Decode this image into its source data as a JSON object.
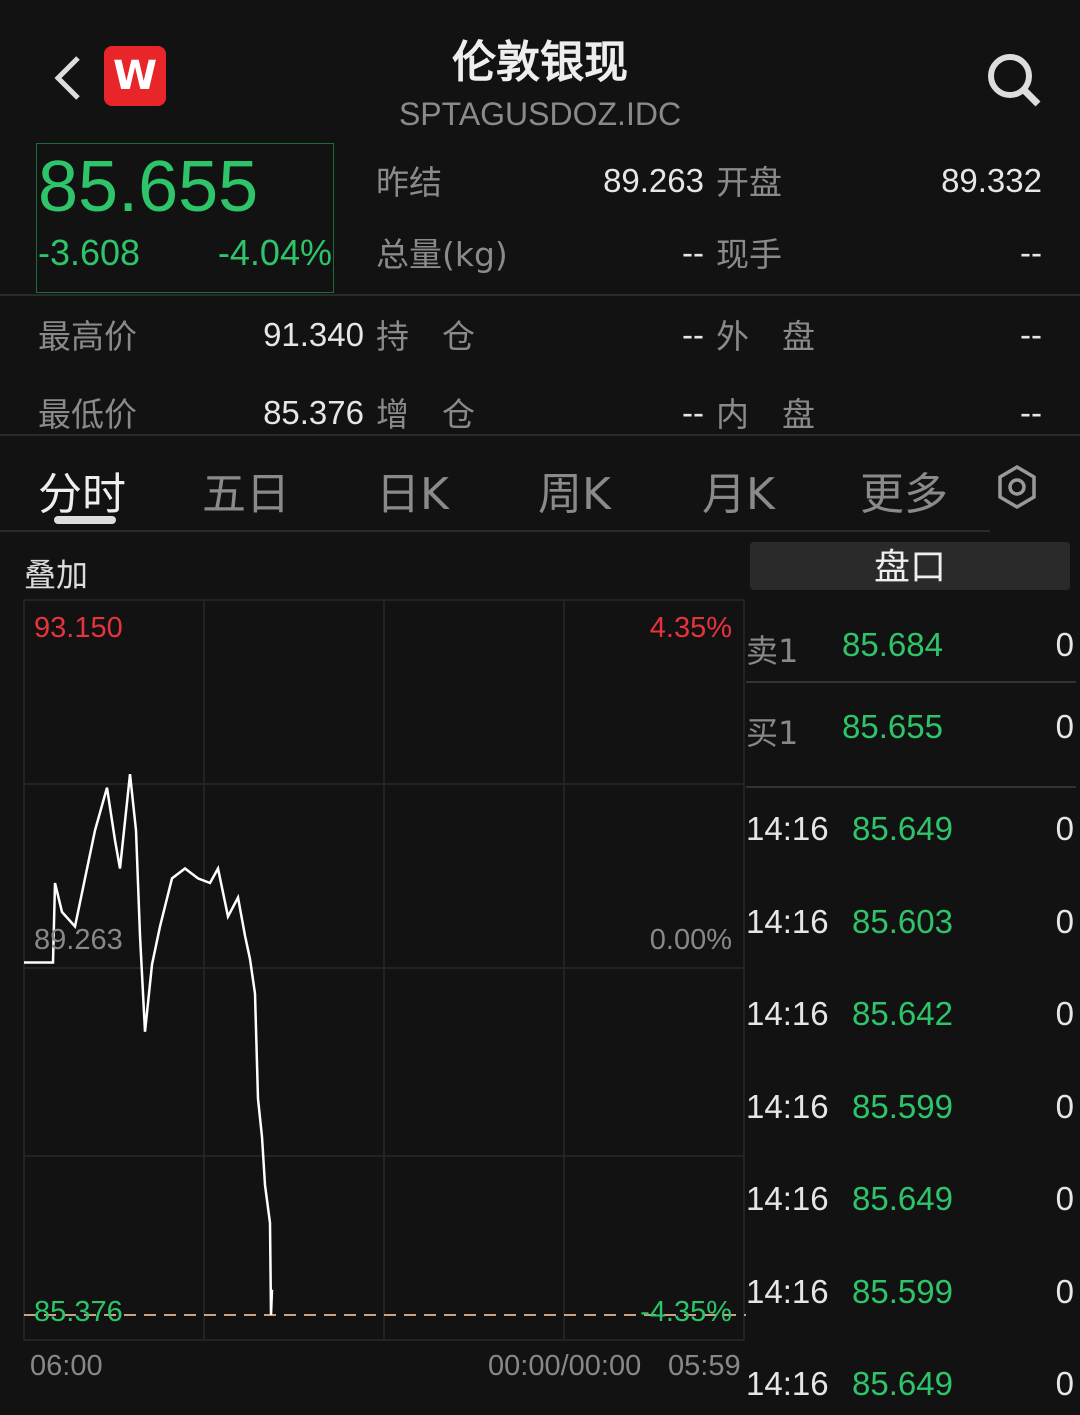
{
  "header": {
    "title": "伦敦银现",
    "code": "SPTAGUSDOZ.IDC",
    "logo": "W",
    "back_icon": "chevron-left-icon",
    "search_icon": "search-icon"
  },
  "quote": {
    "price": "85.655",
    "change": "-3.608",
    "change_pct": "-4.04%"
  },
  "stats": [
    {
      "label": "昨结",
      "value": "89.263"
    },
    {
      "label": "开盘",
      "value": "89.332"
    },
    {
      "label": "总量(kg)",
      "value": "--"
    },
    {
      "label": "现手",
      "value": "--"
    },
    {
      "label": "最高价",
      "value": "91.340"
    },
    {
      "label": "持　仓",
      "value": "--"
    },
    {
      "label": "外　盘",
      "value": "--"
    },
    {
      "label": "最低价",
      "value": "85.376"
    },
    {
      "label": "增　仓",
      "value": "--"
    },
    {
      "label": "内　盘",
      "value": "--"
    }
  ],
  "tabs": [
    {
      "label": "分时",
      "active": true
    },
    {
      "label": "五日"
    },
    {
      "label": "日K"
    },
    {
      "label": "周K"
    },
    {
      "label": "月K"
    },
    {
      "label": "更多"
    }
  ],
  "overlay_label": "叠加",
  "colors": {
    "up": "#e8323c",
    "down": "#2ec46a",
    "line": "#ffffff",
    "bg": "#121212"
  },
  "chart_data": {
    "type": "line",
    "ylim": [
      85.376,
      93.15
    ],
    "y_labels": {
      "top": "93.150",
      "mid": "89.263",
      "bottom": "85.376"
    },
    "pct_labels": {
      "top": "4.35%",
      "mid": "0.00%",
      "bottom": "-4.35%"
    },
    "x_labels": {
      "start": "06:00",
      "cursor": "00:00/00:00",
      "end": "05:59"
    },
    "reference_price": 89.263,
    "points": [
      [
        "06:00",
        89.263
      ],
      [
        "06:58",
        89.263
      ],
      [
        "07:02",
        90.14
      ],
      [
        "07:16",
        89.82
      ],
      [
        "07:42",
        89.66
      ],
      [
        "08:02",
        90.19
      ],
      [
        "08:22",
        90.72
      ],
      [
        "08:46",
        91.19
      ],
      [
        "09:02",
        90.61
      ],
      [
        "09:12",
        90.3
      ],
      [
        "09:32",
        91.34
      ],
      [
        "09:44",
        90.72
      ],
      [
        "09:52",
        89.56
      ],
      [
        "10:02",
        88.5
      ],
      [
        "10:16",
        89.24
      ],
      [
        "10:32",
        89.66
      ],
      [
        "10:56",
        90.19
      ],
      [
        "11:22",
        90.3
      ],
      [
        "11:48",
        90.19
      ],
      [
        "12:12",
        90.14
      ],
      [
        "12:28",
        90.3
      ],
      [
        "12:48",
        89.77
      ],
      [
        "13:08",
        89.98
      ],
      [
        "13:22",
        89.56
      ],
      [
        "13:32",
        89.3
      ],
      [
        "13:42",
        88.92
      ],
      [
        "13:48",
        87.76
      ],
      [
        "13:56",
        87.34
      ],
      [
        "14:02",
        86.81
      ],
      [
        "14:12",
        86.39
      ],
      [
        "14:14",
        85.376
      ],
      [
        "14:16",
        85.655
      ]
    ]
  },
  "orderbook": {
    "title": "盘口",
    "quotes": [
      {
        "label": "卖1",
        "price": "85.684",
        "vol": "0"
      },
      {
        "label": "买1",
        "price": "85.655",
        "vol": "0"
      }
    ],
    "trades": [
      {
        "time": "14:16",
        "price": "85.649",
        "vol": "0"
      },
      {
        "time": "14:16",
        "price": "85.603",
        "vol": "0"
      },
      {
        "time": "14:16",
        "price": "85.642",
        "vol": "0"
      },
      {
        "time": "14:16",
        "price": "85.599",
        "vol": "0"
      },
      {
        "time": "14:16",
        "price": "85.649",
        "vol": "0"
      },
      {
        "time": "14:16",
        "price": "85.599",
        "vol": "0"
      },
      {
        "time": "14:16",
        "price": "85.649",
        "vol": "0"
      }
    ]
  }
}
